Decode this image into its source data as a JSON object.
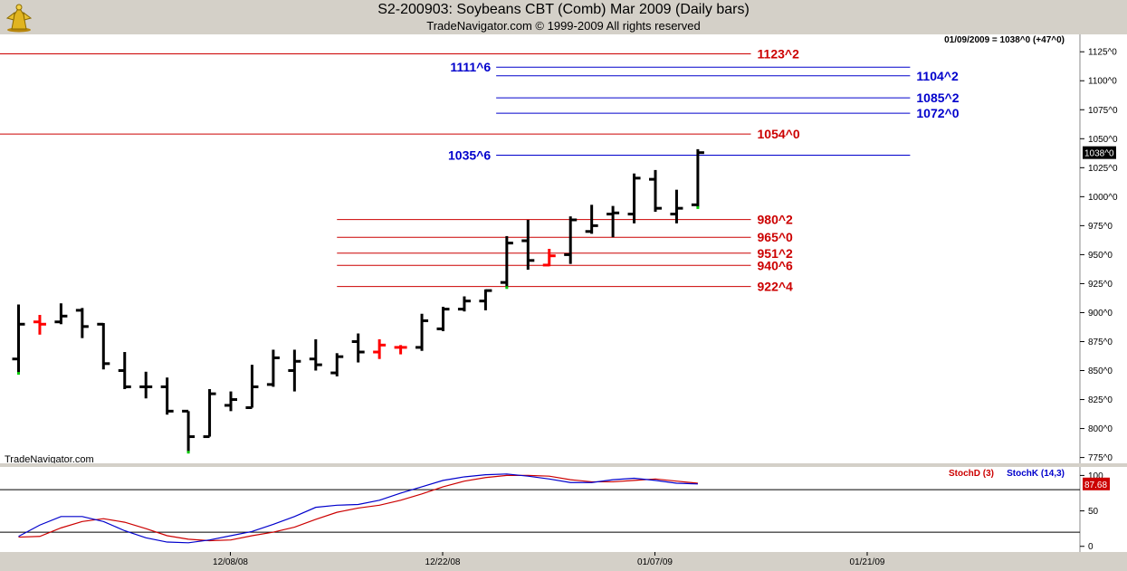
{
  "header": {
    "title": "S2-200903:  Soybeans CBT (Comb) Mar 2009  (Daily bars)",
    "copyright": "TradeNavigator.com © 1999-2009 All rights reserved"
  },
  "colors": {
    "up_bar": "#000000",
    "highlight_bar": "#ff0000",
    "red_level": "#cc0000",
    "blue_level": "#0000cc",
    "stoch_d": "#cc0000",
    "stoch_k": "#0000cc",
    "dot_marker": "#00cc00"
  },
  "chart_data": [
    {
      "type": "ohlc",
      "title": "S2-200903:  Soybeans CBT (Comb) Mar 2009  (Daily bars)",
      "info": "01/09/2009 = 1038^0 (+47^0)",
      "watermark": "TradeNavigator.com",
      "last_price_label": "1038^0",
      "ylim": [
        770,
        1140
      ],
      "y_ticks": [
        775,
        800,
        825,
        850,
        875,
        900,
        925,
        950,
        975,
        1000,
        1025,
        1050,
        1075,
        1100,
        1125
      ],
      "y_tick_labels": [
        "775^0",
        "800^0",
        "825^0",
        "850^0",
        "875^0",
        "900^0",
        "925^0",
        "950^0",
        "975^0",
        "1000^0",
        "1025^0",
        "1050^0",
        "1075^0",
        "1100^0",
        "1125^0"
      ],
      "x_tick_labels": [
        {
          "label": "12/08/08",
          "bar": 10
        },
        {
          "label": "12/22/08",
          "bar": 20
        },
        {
          "label": "01/07/09",
          "bar": 30
        },
        {
          "label": "01/21/09",
          "bar": 40
        }
      ],
      "bars": [
        {
          "o": 860,
          "h": 907,
          "l": 848,
          "c": 890,
          "marker": "low"
        },
        {
          "o": 892,
          "h": 898,
          "l": 881,
          "c": 890,
          "color": "red"
        },
        {
          "o": 892,
          "h": 908,
          "l": 890,
          "c": 897
        },
        {
          "o": 902,
          "h": 904,
          "l": 878,
          "c": 888
        },
        {
          "o": 890,
          "h": 891,
          "l": 851,
          "c": 856
        },
        {
          "o": 850,
          "h": 866,
          "l": 834,
          "c": 836
        },
        {
          "o": 836,
          "h": 849,
          "l": 826,
          "c": 836
        },
        {
          "o": 836,
          "h": 844,
          "l": 812,
          "c": 815
        },
        {
          "o": 815,
          "h": 815,
          "l": 780,
          "c": 793,
          "marker": "low"
        },
        {
          "o": 793,
          "h": 834,
          "l": 793,
          "c": 830
        },
        {
          "o": 820,
          "h": 832,
          "l": 815,
          "c": 825
        },
        {
          "o": 818,
          "h": 855,
          "l": 818,
          "c": 836
        },
        {
          "o": 838,
          "h": 868,
          "l": 836,
          "c": 861
        },
        {
          "o": 850,
          "h": 868,
          "l": 832,
          "c": 858
        },
        {
          "o": 860,
          "h": 877,
          "l": 850,
          "c": 855
        },
        {
          "o": 848,
          "h": 865,
          "l": 845,
          "c": 862
        },
        {
          "o": 875,
          "h": 882,
          "l": 857,
          "c": 866
        },
        {
          "o": 866,
          "h": 877,
          "l": 860,
          "c": 872,
          "color": "red"
        },
        {
          "o": 870,
          "h": 872,
          "l": 864,
          "c": 870,
          "color": "red"
        },
        {
          "o": 870,
          "h": 899,
          "l": 867,
          "c": 893
        },
        {
          "o": 886,
          "h": 905,
          "l": 884,
          "c": 903
        },
        {
          "o": 903,
          "h": 914,
          "l": 901,
          "c": 910
        },
        {
          "o": 910,
          "h": 920,
          "l": 902,
          "c": 919
        },
        {
          "o": 926,
          "h": 966,
          "l": 922,
          "c": 960,
          "marker": "low"
        },
        {
          "o": 962,
          "h": 980,
          "l": 937,
          "c": 945
        },
        {
          "o": 941,
          "h": 955,
          "l": 940,
          "c": 949,
          "color": "red"
        },
        {
          "o": 950,
          "h": 983,
          "l": 942,
          "c": 980
        },
        {
          "o": 970,
          "h": 993,
          "l": 968,
          "c": 975
        },
        {
          "o": 985,
          "h": 992,
          "l": 965,
          "c": 986
        },
        {
          "o": 985,
          "h": 1020,
          "l": 977,
          "c": 1016
        },
        {
          "o": 1015,
          "h": 1023,
          "l": 987,
          "c": 990
        },
        {
          "o": 985,
          "h": 1006,
          "l": 977,
          "c": 990
        },
        {
          "o": 993,
          "h": 1041,
          "l": 991,
          "c": 1038,
          "marker": "low"
        }
      ],
      "levels": [
        {
          "value": 1123.25,
          "label": "1123^2",
          "color": "red",
          "start_bar": -2,
          "end_bar": 34.5
        },
        {
          "value": 1111.75,
          "label": "1111^6",
          "color": "blue",
          "start_bar": 22.5,
          "end_bar": 42,
          "label_side": "left"
        },
        {
          "value": 1104.25,
          "label": "1104^2",
          "color": "blue",
          "start_bar": 22.5,
          "end_bar": 42
        },
        {
          "value": 1085.25,
          "label": "1085^2",
          "color": "blue",
          "start_bar": 22.5,
          "end_bar": 42
        },
        {
          "value": 1072,
          "label": "1072^0",
          "color": "blue",
          "start_bar": 22.5,
          "end_bar": 42
        },
        {
          "value": 1054,
          "label": "1054^0",
          "color": "red",
          "start_bar": -2,
          "end_bar": 34.5
        },
        {
          "value": 1035.75,
          "label": "1035^6",
          "color": "blue",
          "start_bar": 22.5,
          "end_bar": 42,
          "label_side": "left"
        },
        {
          "value": 980.25,
          "label": "980^2",
          "color": "red",
          "start_bar": 15,
          "end_bar": 34.5
        },
        {
          "value": 965,
          "label": "965^0",
          "color": "red",
          "start_bar": 15,
          "end_bar": 34.5
        },
        {
          "value": 951.25,
          "label": "951^2",
          "color": "red",
          "start_bar": 15,
          "end_bar": 34.5
        },
        {
          "value": 940.75,
          "label": "940^6",
          "color": "red",
          "start_bar": 15,
          "end_bar": 34.5
        },
        {
          "value": 922.5,
          "label": "922^4",
          "color": "red",
          "start_bar": 15,
          "end_bar": 34.5
        }
      ]
    },
    {
      "type": "line",
      "legend": [
        {
          "name": "StochD (3)",
          "color": "red"
        },
        {
          "name": "StochK (14,3)",
          "color": "blue"
        }
      ],
      "ylim": [
        -8,
        112
      ],
      "y_ticks": [
        0,
        50,
        100
      ],
      "reference_lines": [
        20,
        80
      ],
      "last_value_label": "87.68",
      "series": [
        {
          "name": "StochK (14,3)",
          "color": "blue",
          "values": [
            14,
            30,
            42,
            42,
            35,
            22,
            12,
            6,
            5,
            9,
            15,
            21,
            31,
            42,
            55,
            58,
            59,
            65,
            75,
            84,
            93,
            98,
            101,
            102,
            99,
            95,
            90,
            90,
            94,
            96,
            93,
            89,
            88
          ]
        },
        {
          "name": "StochD (3)",
          "color": "red",
          "values": [
            13,
            14,
            26,
            35,
            39,
            34,
            25,
            15,
            10,
            8,
            9,
            15,
            20,
            27,
            38,
            48,
            54,
            58,
            65,
            74,
            84,
            92,
            97,
            100,
            100,
            99,
            94,
            91,
            91,
            93,
            95,
            92,
            89
          ]
        }
      ]
    }
  ]
}
